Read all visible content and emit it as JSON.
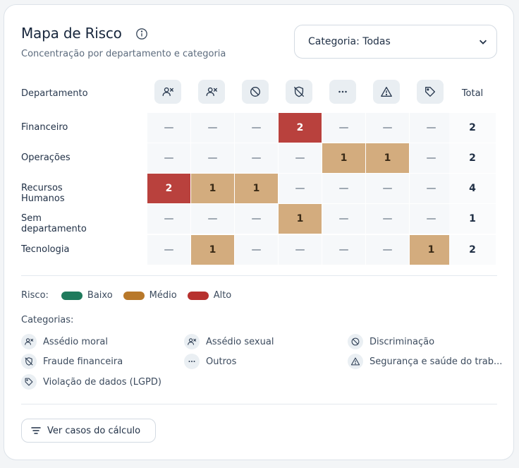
{
  "header": {
    "title": "Mapa de Risco",
    "subtitle": "Concentração por departamento e categoria"
  },
  "filter": {
    "label": "Categoria: Todas"
  },
  "table": {
    "department_header": "Departamento",
    "total_header": "Total",
    "empty_mark": "—",
    "columns": [
      {
        "icon": "user-x-icon",
        "category": "Assédio moral"
      },
      {
        "icon": "user-x-icon",
        "category": "Assédio sexual"
      },
      {
        "icon": "ban-icon",
        "category": "Discriminação"
      },
      {
        "icon": "shield-off-icon",
        "category": "Fraude financeira"
      },
      {
        "icon": "ellipsis-icon",
        "category": "Outros"
      },
      {
        "icon": "warning-triangle-icon",
        "category": "Segurança e saúde do trab..."
      },
      {
        "icon": "tag-icon",
        "category": "Violação de dados (LGPD)"
      }
    ],
    "rows": [
      {
        "department": "Financeiro",
        "cells": [
          "—",
          "—",
          "—",
          "2",
          "—",
          "—",
          "—"
        ],
        "levels": [
          "none",
          "none",
          "none",
          "high",
          "none",
          "none",
          "none"
        ],
        "total": "2"
      },
      {
        "department": "Operações",
        "cells": [
          "—",
          "—",
          "—",
          "—",
          "1",
          "1",
          "—"
        ],
        "levels": [
          "none",
          "none",
          "none",
          "none",
          "medium",
          "medium",
          "none"
        ],
        "total": "2"
      },
      {
        "department": "Recursos Humanos",
        "cells": [
          "2",
          "1",
          "1",
          "—",
          "—",
          "—",
          "—"
        ],
        "levels": [
          "high",
          "medium",
          "medium",
          "none",
          "none",
          "none",
          "none"
        ],
        "total": "4"
      },
      {
        "department": "Sem departamento",
        "cells": [
          "—",
          "—",
          "—",
          "1",
          "—",
          "—",
          "—"
        ],
        "levels": [
          "none",
          "none",
          "none",
          "medium",
          "none",
          "none",
          "none"
        ],
        "total": "1"
      },
      {
        "department": "Tecnologia",
        "cells": [
          "—",
          "1",
          "—",
          "—",
          "—",
          "—",
          "1"
        ],
        "levels": [
          "none",
          "medium",
          "none",
          "none",
          "none",
          "none",
          "medium"
        ],
        "total": "2"
      }
    ]
  },
  "legend": {
    "risk_label": "Risco:",
    "levels": [
      {
        "label": "Baixo",
        "color": "#1f7a5c"
      },
      {
        "label": "Médio",
        "color": "#b8782a"
      },
      {
        "label": "Alto",
        "color": "#b7312e"
      }
    ],
    "categories_label": "Categorias:",
    "categories": [
      {
        "label": "Assédio moral",
        "icon": "user-x-icon"
      },
      {
        "label": "Assédio sexual",
        "icon": "user-x-icon"
      },
      {
        "label": "Discriminação",
        "icon": "ban-icon"
      },
      {
        "label": "Fraude financeira",
        "icon": "shield-off-icon"
      },
      {
        "label": "Outros",
        "icon": "ellipsis-icon"
      },
      {
        "label": "Segurança e saúde do trab...",
        "icon": "warning-triangle-icon"
      },
      {
        "label": "Violação de dados (LGPD)",
        "icon": "tag-icon"
      }
    ]
  },
  "actions": {
    "view_cases": "Ver casos do cálculo"
  },
  "colors": {
    "medium_cell": "#d3ac7e",
    "high_cell": "#b9413d"
  }
}
